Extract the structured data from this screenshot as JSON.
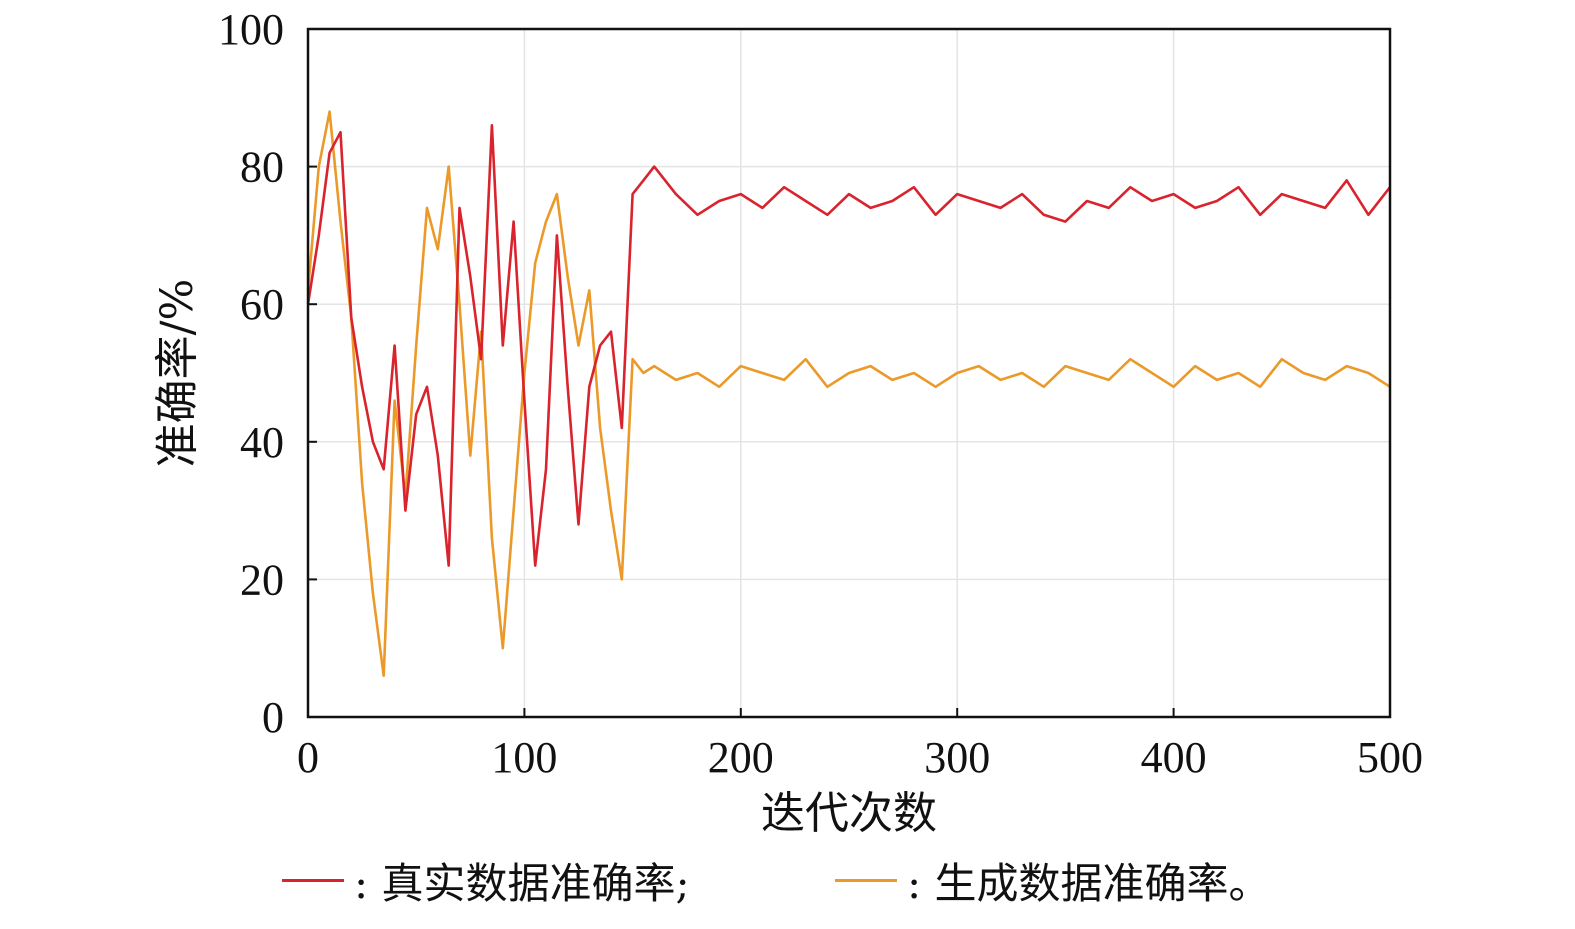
{
  "chart_data": {
    "type": "line",
    "xlabel": "迭代次数",
    "ylabel": "准确率/%",
    "xlim": [
      0,
      500
    ],
    "ylim": [
      0,
      100
    ],
    "xticks": [
      "0",
      "100",
      "200",
      "300",
      "400",
      "500"
    ],
    "yticks": [
      "0",
      "20",
      "40",
      "60",
      "80",
      "100"
    ],
    "grid": true,
    "x": [
      0,
      5,
      10,
      15,
      20,
      25,
      30,
      35,
      40,
      45,
      50,
      55,
      60,
      65,
      70,
      75,
      80,
      85,
      90,
      95,
      100,
      105,
      110,
      115,
      120,
      125,
      130,
      135,
      140,
      145,
      150,
      155,
      160,
      170,
      180,
      190,
      200,
      210,
      220,
      230,
      240,
      250,
      260,
      270,
      280,
      290,
      300,
      310,
      320,
      330,
      340,
      350,
      360,
      370,
      380,
      390,
      400,
      410,
      420,
      430,
      440,
      450,
      460,
      470,
      480,
      490,
      500
    ],
    "series": [
      {
        "name": "真实数据准确率",
        "color": "#d9232d",
        "values": [
          60,
          70,
          82,
          85,
          58,
          48,
          40,
          36,
          54,
          30,
          44,
          48,
          38,
          22,
          74,
          64,
          52,
          86,
          54,
          72,
          46,
          22,
          36,
          70,
          48,
          28,
          48,
          54,
          56,
          42,
          76,
          78,
          80,
          76,
          73,
          75,
          76,
          74,
          77,
          75,
          73,
          76,
          74,
          75,
          77,
          73,
          76,
          75,
          74,
          76,
          73,
          72,
          75,
          74,
          77,
          75,
          76,
          74,
          75,
          77,
          73,
          76,
          75,
          74,
          78,
          73,
          77
        ]
      },
      {
        "name": "生成数据准确率",
        "color": "#eb9a2a",
        "values": [
          62,
          80,
          88,
          72,
          58,
          34,
          18,
          6,
          46,
          32,
          54,
          74,
          68,
          80,
          60,
          38,
          56,
          26,
          10,
          30,
          50,
          66,
          72,
          76,
          64,
          54,
          62,
          42,
          30,
          20,
          52,
          50,
          51,
          49,
          50,
          48,
          51,
          50,
          49,
          52,
          48,
          50,
          51,
          49,
          50,
          48,
          50,
          51,
          49,
          50,
          48,
          51,
          50,
          49,
          52,
          50,
          48,
          51,
          49,
          50,
          48,
          52,
          50,
          49,
          51,
          50,
          48
        ]
      }
    ],
    "legend": [
      {
        "label": ": 真实数据准确率;",
        "color": "#d9232d"
      },
      {
        "label": ": 生成数据准确率。",
        "color": "#eb9a2a"
      }
    ]
  }
}
